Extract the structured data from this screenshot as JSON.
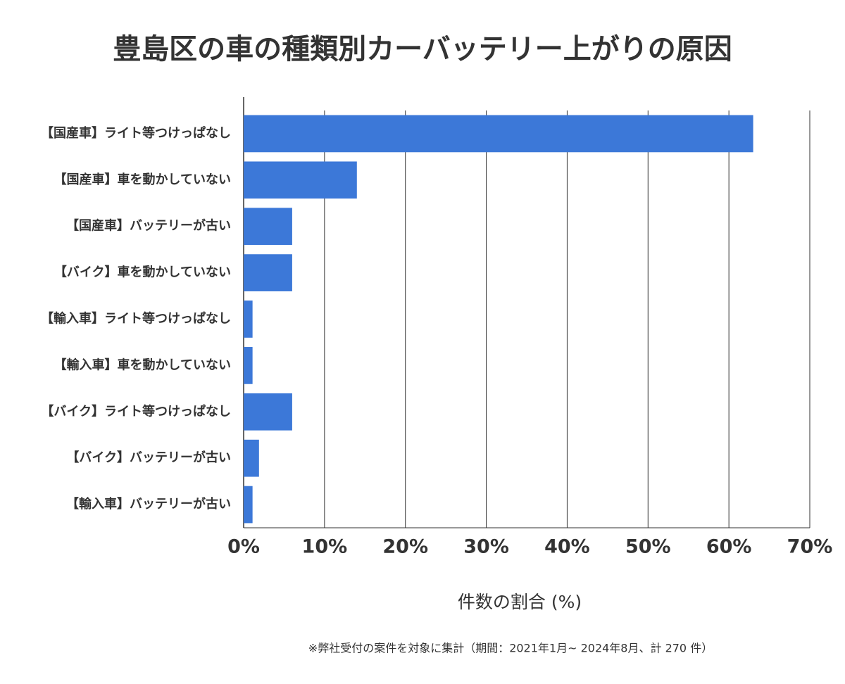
{
  "chart_data": {
    "type": "barh",
    "title": "豊島区の車の種類別カーバッテリー上がりの原因",
    "categories": [
      "【国産車】ライト等つけっぱなし",
      "【国産車】車を動かしていない",
      "【国産車】バッテリーが古い",
      "【バイク】車を動かしていない",
      "【輸入車】ライト等つけっぱなし",
      "【輸入車】車を動かしていない",
      "【バイク】ライト等つけっぱなし",
      "【バイク】バッテリーが古い",
      "【輸入車】バッテリーが古い"
    ],
    "values": [
      63,
      14,
      6,
      6,
      1.1,
      1.1,
      6,
      1.9,
      1.1
    ],
    "color": "#3c78d8",
    "xlim": [
      0,
      70
    ],
    "xticks": [
      {
        "value": 0,
        "label": "0%"
      },
      {
        "value": 10,
        "label": "10%"
      },
      {
        "value": 20,
        "label": "20%"
      },
      {
        "value": 30,
        "label": "30%"
      },
      {
        "value": 40,
        "label": "40%"
      },
      {
        "value": 50,
        "label": "50%"
      },
      {
        "value": 60,
        "label": "60%"
      },
      {
        "value": 70,
        "label": "70%"
      }
    ],
    "grid": true,
    "xlabel": "件数の割合 (%)",
    "footnote": "※弊社受付の案件を対象に集計（期間：2021年1月~ 2024年8月、計 270 件）"
  }
}
